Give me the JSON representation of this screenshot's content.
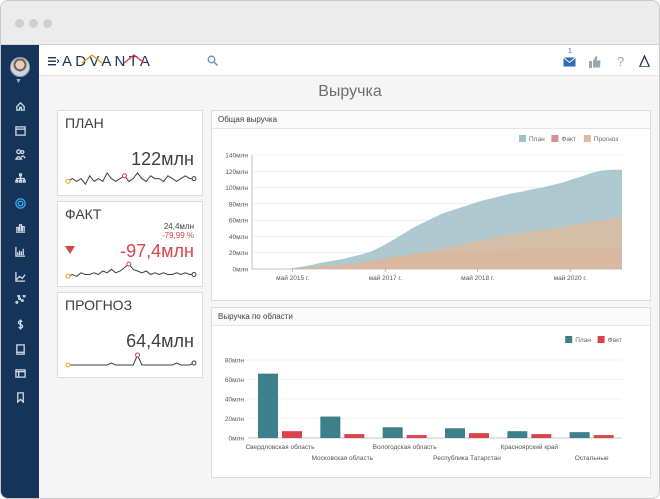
{
  "app": {
    "logo": "ADVANTA",
    "page_title": "Выручка",
    "notification_count": "1"
  },
  "sidebar": {
    "items": [
      {
        "icon": "home-icon"
      },
      {
        "icon": "calendar-icon"
      },
      {
        "icon": "users-icon"
      },
      {
        "icon": "org-structure-icon"
      },
      {
        "icon": "circle-progress-icon"
      },
      {
        "icon": "bar-chart-icon"
      },
      {
        "icon": "column-chart-icon"
      },
      {
        "icon": "area-chart-icon"
      },
      {
        "icon": "scatter-icon"
      },
      {
        "icon": "dollar-icon"
      },
      {
        "icon": "tablet-icon"
      },
      {
        "icon": "window-icon"
      },
      {
        "icon": "bookmark-icon"
      }
    ]
  },
  "kpis": [
    {
      "title": "ПЛАН",
      "value": "122млн",
      "sparkline": [
        2,
        3,
        2,
        3,
        1,
        4,
        2,
        3,
        2,
        5,
        3,
        2,
        3,
        4,
        2,
        3,
        5,
        3,
        2,
        4,
        3,
        3,
        2,
        4,
        3,
        2,
        3,
        4,
        3,
        3
      ],
      "marker_index": 13,
      "color": "#3e3e3e"
    },
    {
      "title": "ФАКТ",
      "value": "-97,4млн",
      "subvalue": "24,4млн",
      "delta": "-79,99 %",
      "sparkline": [
        1,
        2,
        1,
        3,
        2,
        2,
        3,
        2,
        4,
        3,
        5,
        3,
        4,
        6,
        8,
        5,
        4,
        3,
        4,
        2,
        3,
        2,
        3,
        2,
        2,
        3,
        2,
        3,
        2,
        2
      ],
      "marker_index": 14,
      "color": "#d9434b"
    },
    {
      "title": "ПРОГНОЗ",
      "value": "64,4млн",
      "sparkline": [
        2,
        2,
        2,
        2,
        2,
        2,
        2,
        2,
        2,
        2,
        3,
        2,
        2,
        2,
        2,
        2,
        7,
        2,
        2,
        2,
        2,
        2,
        2,
        2,
        2,
        3,
        2,
        2,
        2,
        3
      ],
      "marker_index": 16,
      "color": "#3e3e3e"
    }
  ],
  "panels": {
    "area_title": "Общая выручка",
    "bar_title": "Выручка по области"
  },
  "chart_data": [
    {
      "type": "area",
      "title": "Общая выручка",
      "legend_position": "top-right",
      "ylim": [
        0,
        140
      ],
      "y_ticks": [
        "0млн",
        "20млн",
        "40млн",
        "60млн",
        "80млн",
        "100млн",
        "120млн",
        "140млн"
      ],
      "x_ticks": [
        "май 2015 г.",
        "май 2017 г.",
        "май 2018 г.",
        "май 2020 г."
      ],
      "series": [
        {
          "name": "План",
          "color": "#9fc0c7",
          "values": [
            0,
            0,
            0,
            0,
            1,
            3,
            5,
            8,
            10,
            12,
            15,
            18,
            22,
            28,
            35,
            42,
            50,
            56,
            62,
            68,
            72,
            76,
            80,
            84,
            87,
            90,
            93,
            95,
            98,
            100,
            103,
            106,
            110,
            114,
            118,
            121,
            122,
            122
          ]
        },
        {
          "name": "Факт",
          "color": "#d99090",
          "values": [
            0,
            0,
            0,
            0,
            0,
            1,
            2,
            3,
            4,
            5,
            6,
            8,
            10,
            12,
            14,
            16,
            18,
            19,
            20,
            20,
            21,
            21,
            22,
            22,
            23,
            23,
            23,
            24,
            24,
            24,
            24,
            24,
            24,
            24,
            24,
            24,
            24,
            24
          ]
        },
        {
          "name": "Прогноз",
          "color": "#dbbca0",
          "values": [
            0,
            0,
            0,
            0,
            0,
            1,
            2,
            3,
            4,
            5,
            6,
            8,
            10,
            12,
            14,
            16,
            18,
            20,
            22,
            25,
            28,
            30,
            33,
            36,
            38,
            40,
            42,
            44,
            46,
            48,
            50,
            52,
            54,
            56,
            58,
            60,
            62,
            64
          ]
        }
      ],
      "grid": true
    },
    {
      "type": "bar",
      "title": "Выручка по области",
      "legend_position": "top-right",
      "ylim": [
        0,
        80
      ],
      "y_ticks": [
        "0млн",
        "20млн",
        "40млн",
        "60млн",
        "80млн"
      ],
      "categories": [
        "Свердловская область",
        "Московская область",
        "Вологодская область",
        "Республика Татарстан",
        "Красноярский край",
        "Остальные"
      ],
      "series": [
        {
          "name": "План",
          "color": "#3e7f8c",
          "values": [
            66,
            22,
            11,
            10,
            7,
            6
          ]
        },
        {
          "name": "Факт",
          "color": "#d9434b",
          "values": [
            7,
            4,
            3,
            5,
            4,
            3
          ]
        }
      ],
      "grid": true
    }
  ]
}
